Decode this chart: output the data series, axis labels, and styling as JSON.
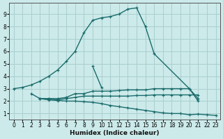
{
  "xlabel": "Humidex (Indice chaleur)",
  "ylabel": "",
  "bg_color": "#cceaea",
  "grid_color": "#aacece",
  "line_color": "#1a6b6b",
  "xlim": [
    -0.5,
    23.5
  ],
  "ylim": [
    0.5,
    9.9
  ],
  "xticks": [
    0,
    1,
    2,
    3,
    4,
    5,
    6,
    7,
    8,
    9,
    10,
    11,
    12,
    13,
    14,
    15,
    16,
    17,
    18,
    19,
    20,
    21,
    22,
    23
  ],
  "yticks": [
    1,
    2,
    3,
    4,
    5,
    6,
    7,
    8,
    9
  ],
  "series": [
    {
      "x": [
        0,
        1,
        2,
        3,
        4,
        5,
        6,
        7,
        8,
        9,
        10,
        11,
        12,
        13,
        14,
        15,
        16,
        20,
        21
      ],
      "y": [
        3.0,
        3.1,
        3.3,
        3.6,
        4.0,
        4.5,
        5.2,
        6.0,
        7.5,
        8.5,
        8.7,
        8.8,
        9.0,
        9.4,
        9.5,
        8.0,
        5.8,
        3.0,
        2.0
      ]
    },
    {
      "x": [
        9,
        10
      ],
      "y": [
        4.8,
        3.1
      ]
    },
    {
      "x": [
        2,
        3,
        4,
        5,
        6,
        7,
        8,
        9,
        10,
        11,
        12,
        13,
        14,
        15,
        16,
        17,
        18,
        19,
        20,
        21
      ],
      "y": [
        2.6,
        2.2,
        2.2,
        2.2,
        2.3,
        2.6,
        2.6,
        2.8,
        2.8,
        2.8,
        2.85,
        2.9,
        2.9,
        2.9,
        3.0,
        3.0,
        3.0,
        3.0,
        3.0,
        2.2
      ]
    },
    {
      "x": [
        3,
        4,
        5,
        6,
        7,
        8,
        9,
        10,
        11,
        12,
        13,
        14,
        15,
        16,
        17,
        18,
        19,
        20,
        21
      ],
      "y": [
        2.2,
        2.2,
        2.1,
        2.2,
        2.3,
        2.4,
        2.4,
        2.4,
        2.4,
        2.4,
        2.4,
        2.45,
        2.45,
        2.5,
        2.5,
        2.5,
        2.5,
        2.5,
        2.5
      ]
    },
    {
      "x": [
        3,
        4,
        5,
        6,
        7,
        8,
        9,
        10,
        11,
        12,
        13,
        14,
        15,
        16,
        17,
        18,
        19,
        20,
        21,
        22,
        23
      ],
      "y": [
        2.2,
        2.1,
        2.05,
        2.0,
        2.0,
        1.95,
        1.9,
        1.8,
        1.65,
        1.55,
        1.45,
        1.35,
        1.25,
        1.15,
        1.05,
        1.0,
        1.0,
        0.9,
        0.95,
        0.9,
        0.85
      ]
    }
  ]
}
